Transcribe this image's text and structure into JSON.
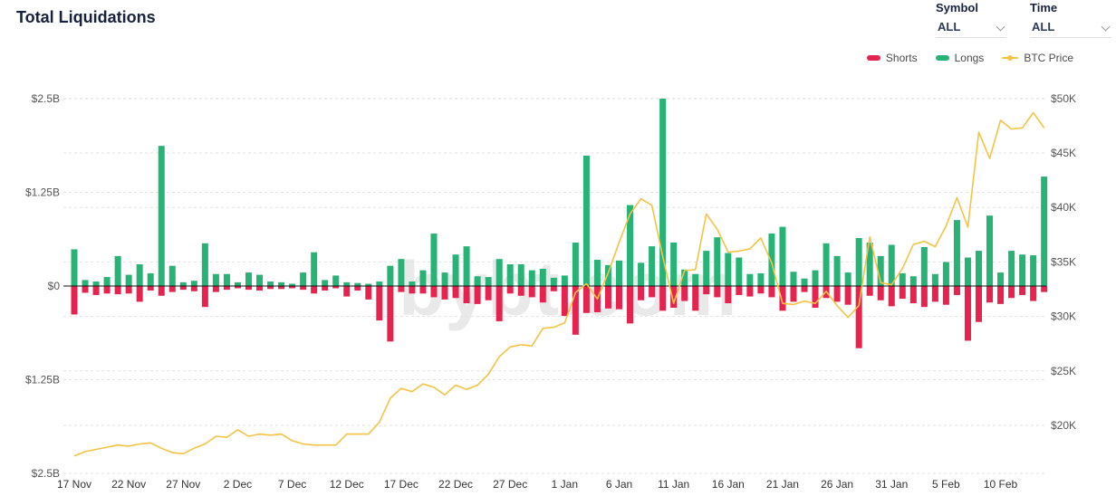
{
  "header": {
    "title": "Total Liquidations"
  },
  "controls": {
    "symbol": {
      "label": "Symbol",
      "value": "ALL"
    },
    "time": {
      "label": "Time",
      "value": "ALL"
    }
  },
  "legend": {
    "shorts_label": "Shorts",
    "longs_label": "Longs",
    "btc_label": "BTC Price"
  },
  "watermark": "bybt.com",
  "colors": {
    "shorts": "#e5234e",
    "longs": "#27b376",
    "btc_line": "#f5c344",
    "grid": "#e2e2e2",
    "zero_line": "#111111",
    "axis_text": "#555555",
    "date_text": "#333333",
    "watermark": "#e9e9e9"
  },
  "chart_data": {
    "type": "bar",
    "title": "Total Liquidations",
    "xlabel": "",
    "ylabel_left": "Liquidations (USD)",
    "ylabel_right": "BTC Price",
    "legend_position": "top-right",
    "grid": "dashed",
    "x_tick_every": 5,
    "left_axis": {
      "tick_labels": [
        "$2.5B",
        "$1.25B",
        "$0",
        "$1.25B",
        "$2.5B"
      ],
      "tick_values_b": [
        2.5,
        1.25,
        0,
        -1.25,
        -2.5
      ],
      "max_b": 2.5
    },
    "right_axis": {
      "tick_labels": [
        "$50K",
        "$45K",
        "$40K",
        "$35K",
        "$30K",
        "$25K",
        "$20K"
      ],
      "tick_values_k": [
        50,
        45,
        40,
        35,
        30,
        25,
        20
      ],
      "min_k": 20,
      "max_k": 50
    },
    "categories": [
      "17 Nov",
      "18 Nov",
      "19 Nov",
      "20 Nov",
      "21 Nov",
      "22 Nov",
      "23 Nov",
      "24 Nov",
      "25 Nov",
      "26 Nov",
      "27 Nov",
      "28 Nov",
      "29 Nov",
      "30 Nov",
      "1 Dec",
      "2 Dec",
      "3 Dec",
      "4 Dec",
      "5 Dec",
      "6 Dec",
      "7 Dec",
      "8 Dec",
      "9 Dec",
      "10 Dec",
      "11 Dec",
      "12 Dec",
      "13 Dec",
      "14 Dec",
      "15 Dec",
      "16 Dec",
      "17 Dec",
      "18 Dec",
      "19 Dec",
      "20 Dec",
      "21 Dec",
      "22 Dec",
      "23 Dec",
      "24 Dec",
      "25 Dec",
      "26 Dec",
      "27 Dec",
      "28 Dec",
      "29 Dec",
      "30 Dec",
      "31 Dec",
      "1 Jan",
      "2 Jan",
      "3 Jan",
      "4 Jan",
      "5 Jan",
      "6 Jan",
      "7 Jan",
      "8 Jan",
      "9 Jan",
      "10 Jan",
      "11 Jan",
      "12 Jan",
      "13 Jan",
      "14 Jan",
      "15 Jan",
      "16 Jan",
      "17 Jan",
      "18 Jan",
      "19 Jan",
      "20 Jan",
      "21 Jan",
      "22 Jan",
      "23 Jan",
      "24 Jan",
      "25 Jan",
      "26 Jan",
      "27 Jan",
      "28 Jan",
      "29 Jan",
      "30 Jan",
      "31 Jan",
      "1 Feb",
      "2 Feb",
      "3 Feb",
      "4 Feb",
      "5 Feb",
      "6 Feb",
      "7 Feb",
      "8 Feb",
      "9 Feb",
      "10 Feb",
      "11 Feb",
      "12 Feb",
      "13 Feb",
      "14 Feb"
    ],
    "series": [
      {
        "name": "Longs",
        "type": "bar",
        "direction": "up",
        "unit": "B",
        "values": [
          0.49,
          0.08,
          0.06,
          0.12,
          0.4,
          0.15,
          0.29,
          0.17,
          1.87,
          0.27,
          0.05,
          0.07,
          0.57,
          0.16,
          0.16,
          0.05,
          0.18,
          0.15,
          0.06,
          0.05,
          0.03,
          0.18,
          0.45,
          0.08,
          0.14,
          0.05,
          0.04,
          0.03,
          0.06,
          0.27,
          0.36,
          0.06,
          0.21,
          0.7,
          0.18,
          0.42,
          0.53,
          0.13,
          0.12,
          0.36,
          0.29,
          0.29,
          0.21,
          0.23,
          0.11,
          0.14,
          0.58,
          1.74,
          0.35,
          0.28,
          0.34,
          1.08,
          0.31,
          0.53,
          2.5,
          0.58,
          0.22,
          0.16,
          0.47,
          0.65,
          0.44,
          0.38,
          0.16,
          0.17,
          0.7,
          0.79,
          0.19,
          0.1,
          0.21,
          0.57,
          0.4,
          0.18,
          0.64,
          0.58,
          0.4,
          0.55,
          0.17,
          0.13,
          0.52,
          0.16,
          0.32,
          0.88,
          0.38,
          0.47,
          0.94,
          0.18,
          0.47,
          0.42,
          0.41,
          1.46
        ]
      },
      {
        "name": "Shorts",
        "type": "bar",
        "direction": "down",
        "unit": "B",
        "values": [
          0.38,
          0.09,
          0.12,
          0.1,
          0.11,
          0.1,
          0.21,
          0.06,
          0.13,
          0.08,
          0.05,
          0.07,
          0.28,
          0.08,
          0.05,
          0.03,
          0.05,
          0.06,
          0.04,
          0.04,
          0.03,
          0.05,
          0.1,
          0.06,
          0.03,
          0.14,
          0.06,
          0.18,
          0.46,
          0.74,
          0.08,
          0.1,
          0.1,
          0.15,
          0.18,
          0.16,
          0.23,
          0.24,
          0.19,
          0.47,
          0.1,
          0.13,
          0.15,
          0.22,
          0.07,
          0.4,
          0.65,
          0.36,
          0.35,
          0.3,
          0.31,
          0.5,
          0.19,
          0.15,
          0.33,
          0.29,
          0.2,
          0.33,
          0.11,
          0.15,
          0.23,
          0.12,
          0.14,
          0.1,
          0.15,
          0.33,
          0.21,
          0.08,
          0.29,
          0.16,
          0.21,
          0.25,
          0.83,
          0.13,
          0.19,
          0.27,
          0.17,
          0.23,
          0.28,
          0.21,
          0.25,
          0.12,
          0.73,
          0.48,
          0.22,
          0.24,
          0.16,
          0.12,
          0.2,
          0.08
        ]
      },
      {
        "name": "BTC Price",
        "type": "line",
        "axis": "right",
        "unit": "K",
        "values": [
          17.2,
          17.6,
          17.8,
          18.0,
          18.2,
          18.1,
          18.3,
          18.4,
          17.9,
          17.5,
          17.4,
          17.9,
          18.3,
          19.0,
          18.9,
          19.6,
          19.0,
          19.2,
          19.1,
          19.2,
          18.6,
          18.3,
          18.2,
          18.2,
          18.2,
          19.2,
          19.2,
          19.2,
          20.3,
          22.5,
          23.4,
          23.1,
          23.8,
          23.5,
          22.8,
          23.7,
          23.3,
          23.7,
          24.7,
          26.3,
          27.2,
          27.4,
          27.3,
          28.9,
          29.0,
          29.4,
          32.2,
          33.0,
          31.6,
          34.0,
          36.8,
          39.4,
          40.8,
          40.2,
          35.5,
          31.2,
          34.2,
          34.3,
          39.4,
          38.0,
          35.9,
          36.0,
          36.2,
          37.2,
          34.9,
          31.2,
          31.1,
          31.4,
          31.2,
          32.3,
          31.0,
          29.9,
          31.0,
          37.3,
          33.1,
          32.9,
          34.4,
          36.6,
          36.9,
          36.4,
          38.3,
          40.9,
          38.2,
          46.9,
          44.5,
          48.0,
          47.2,
          47.3,
          48.7,
          47.3
        ]
      }
    ]
  }
}
